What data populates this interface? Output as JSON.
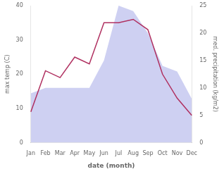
{
  "chart_data": {
    "type": "line",
    "categories": [
      "Jan",
      "Feb",
      "Mar",
      "Apr",
      "May",
      "Jun",
      "Jul",
      "Aug",
      "Sep",
      "Oct",
      "Nov",
      "Dec"
    ],
    "xlabel": "date (month)",
    "ylabel": "max temp (C)",
    "y2label": "med. precipitation (kg/m2)",
    "series": [
      {
        "type": "line",
        "color": "#b03060",
        "values": [
          9,
          21,
          19,
          25,
          23,
          35,
          35,
          36,
          33,
          20,
          13,
          8
        ]
      },
      {
        "type": "area",
        "color": "#c5c8f0",
        "axis": "y2",
        "values": [
          9,
          10,
          10,
          10,
          10,
          15,
          25,
          24,
          20,
          14,
          13,
          8
        ]
      }
    ],
    "ylim": [
      0,
      40
    ],
    "yticks": [
      0,
      10,
      20,
      30,
      40
    ],
    "y2lim": [
      0,
      25
    ],
    "y2ticks": [
      0,
      5,
      10,
      15,
      20,
      25
    ],
    "grid": false
  }
}
